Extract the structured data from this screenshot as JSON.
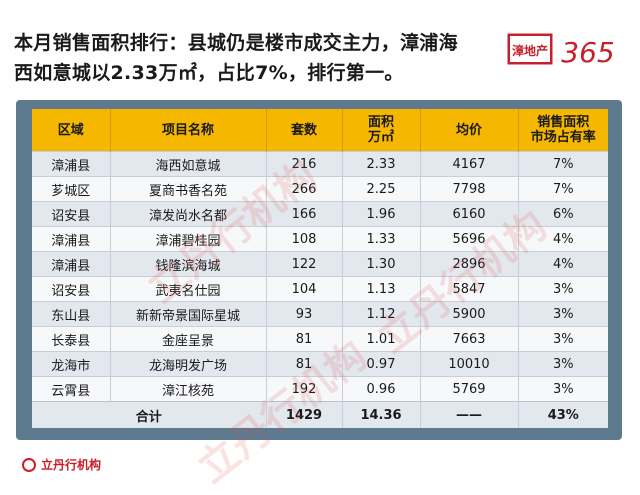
{
  "headline": {
    "line1": "本月销售面积排行：县城仍是楼市成交主力，漳浦海",
    "line2": "西如意城以2.33万㎡，占比7%，排行第一。"
  },
  "brand_logo": {
    "text_cn": "漳地产",
    "text_num": "365"
  },
  "table": {
    "headers": {
      "region": "区域",
      "project": "项目名称",
      "units": "套数",
      "area_l1": "面积",
      "area_l2": "万㎡",
      "avg_price": "均价",
      "share_l1": "销售面积",
      "share_l2": "市场占有率"
    },
    "rows": [
      [
        "漳浦县",
        "海西如意城",
        "216",
        "2.33",
        "4167",
        "7%"
      ],
      [
        "芗城区",
        "夏商书香名苑",
        "266",
        "2.25",
        "7798",
        "7%"
      ],
      [
        "诏安县",
        "漳发尚水名都",
        "166",
        "1.96",
        "6160",
        "6%"
      ],
      [
        "漳浦县",
        "漳浦碧桂园",
        "108",
        "1.33",
        "5696",
        "4%"
      ],
      [
        "漳浦县",
        "钱隆滨海城",
        "122",
        "1.30",
        "2896",
        "4%"
      ],
      [
        "诏安县",
        "武夷名仕园",
        "104",
        "1.13",
        "5847",
        "3%"
      ],
      [
        "东山县",
        "新新帝景国际星城",
        "93",
        "1.12",
        "5900",
        "3%"
      ],
      [
        "长泰县",
        "金座呈景",
        "81",
        "1.01",
        "7663",
        "3%"
      ],
      [
        "龙海市",
        "龙海明发广场",
        "81",
        "0.97",
        "10010",
        "3%"
      ],
      [
        "云霄县",
        "漳江核苑",
        "192",
        "0.96",
        "5769",
        "3%"
      ]
    ],
    "total": {
      "label": "合计",
      "units": "1429",
      "area": "14.36",
      "avg_price": "——",
      "share": "43%"
    }
  },
  "watermark": {
    "text": "立丹行机构"
  },
  "footer_logo": {
    "text": "立丹行机构"
  }
}
